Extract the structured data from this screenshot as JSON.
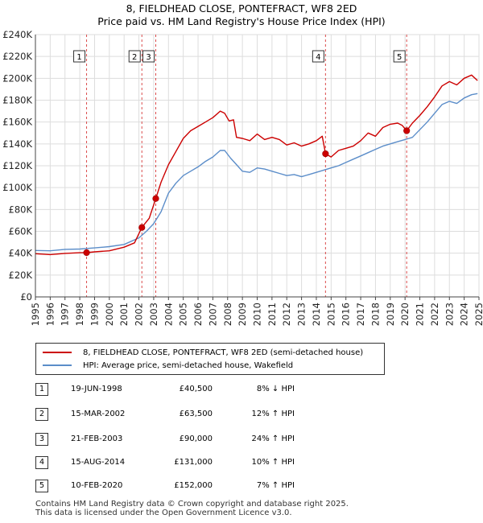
{
  "title_line1": "8, FIELDHEAD CLOSE, PONTEFRACT, WF8 2ED",
  "title_line2": "Price paid vs. HM Land Registry's House Price Index (HPI)",
  "colors": {
    "price_paid": "#cc0000",
    "hpi": "#5b8dc9",
    "grid": "#dddddd",
    "marker_line": "#cc0000"
  },
  "chart_data": {
    "type": "line",
    "ylim": [
      0,
      240000
    ],
    "xlim": [
      1995,
      2025
    ],
    "y_ticks": [
      0,
      20000,
      40000,
      60000,
      80000,
      100000,
      120000,
      140000,
      160000,
      180000,
      200000,
      220000,
      240000
    ],
    "y_tick_labels": [
      "£0",
      "£20K",
      "£40K",
      "£60K",
      "£80K",
      "£100K",
      "£120K",
      "£140K",
      "£160K",
      "£180K",
      "£200K",
      "£220K",
      "£240K"
    ],
    "x_ticks": [
      1995,
      1996,
      1997,
      1998,
      1999,
      2000,
      2001,
      2002,
      2003,
      2004,
      2005,
      2006,
      2007,
      2008,
      2009,
      2010,
      2011,
      2012,
      2013,
      2014,
      2015,
      2016,
      2017,
      2018,
      2019,
      2020,
      2021,
      2022,
      2023,
      2024,
      2025
    ],
    "grid": true,
    "series": [
      {
        "name": "8, FIELDHEAD CLOSE, PONTEFRACT, WF8 2ED (semi-detached house)",
        "color": "#cc0000",
        "points": [
          [
            1995.0,
            39500
          ],
          [
            1996.0,
            38700
          ],
          [
            1997.0,
            39800
          ],
          [
            1998.0,
            40400
          ],
          [
            1998.46,
            40500
          ],
          [
            1999.0,
            41200
          ],
          [
            2000.0,
            42200
          ],
          [
            2001.0,
            45500
          ],
          [
            2001.7,
            49500
          ],
          [
            2002.2,
            63500
          ],
          [
            2002.7,
            72000
          ],
          [
            2003.14,
            90000
          ],
          [
            2003.5,
            105000
          ],
          [
            2004.0,
            121000
          ],
          [
            2004.5,
            133000
          ],
          [
            2005.0,
            145000
          ],
          [
            2005.5,
            152000
          ],
          [
            2006.0,
            156000
          ],
          [
            2006.5,
            160000
          ],
          [
            2007.0,
            164000
          ],
          [
            2007.5,
            170000
          ],
          [
            2007.8,
            168000
          ],
          [
            2008.1,
            161000
          ],
          [
            2008.4,
            162000
          ],
          [
            2008.6,
            146000
          ],
          [
            2009.0,
            145000
          ],
          [
            2009.5,
            143000
          ],
          [
            2010.0,
            149000
          ],
          [
            2010.5,
            144000
          ],
          [
            2011.0,
            146000
          ],
          [
            2011.5,
            144000
          ],
          [
            2012.0,
            139000
          ],
          [
            2012.5,
            141000
          ],
          [
            2013.0,
            138000
          ],
          [
            2013.5,
            140000
          ],
          [
            2014.0,
            143000
          ],
          [
            2014.4,
            147000
          ],
          [
            2014.62,
            131000
          ],
          [
            2015.0,
            128000
          ],
          [
            2015.5,
            134000
          ],
          [
            2016.0,
            136000
          ],
          [
            2016.5,
            138000
          ],
          [
            2017.0,
            143000
          ],
          [
            2017.5,
            150000
          ],
          [
            2018.0,
            147000
          ],
          [
            2018.5,
            155000
          ],
          [
            2019.0,
            158000
          ],
          [
            2019.5,
            159000
          ],
          [
            2019.8,
            157000
          ],
          [
            2020.11,
            152000
          ],
          [
            2020.5,
            159000
          ],
          [
            2021.0,
            166000
          ],
          [
            2021.5,
            174000
          ],
          [
            2022.0,
            183000
          ],
          [
            2022.5,
            193000
          ],
          [
            2023.0,
            197000
          ],
          [
            2023.5,
            194000
          ],
          [
            2024.0,
            200000
          ],
          [
            2024.5,
            203000
          ],
          [
            2024.9,
            198000
          ]
        ]
      },
      {
        "name": "HPI: Average price, semi-detached house, Wakefield",
        "color": "#5b8dc9",
        "points": [
          [
            1995.0,
            42500
          ],
          [
            1996.0,
            42200
          ],
          [
            1997.0,
            43500
          ],
          [
            1998.0,
            43800
          ],
          [
            1999.0,
            44800
          ],
          [
            2000.0,
            46000
          ],
          [
            2001.0,
            48000
          ],
          [
            2002.0,
            54000
          ],
          [
            2002.5,
            60000
          ],
          [
            2003.0,
            67000
          ],
          [
            2003.5,
            78000
          ],
          [
            2004.0,
            95000
          ],
          [
            2004.5,
            104000
          ],
          [
            2005.0,
            111000
          ],
          [
            2005.5,
            115000
          ],
          [
            2006.0,
            119000
          ],
          [
            2006.5,
            124000
          ],
          [
            2007.0,
            128000
          ],
          [
            2007.5,
            134000
          ],
          [
            2007.8,
            134000
          ],
          [
            2008.2,
            127000
          ],
          [
            2008.6,
            121000
          ],
          [
            2009.0,
            115000
          ],
          [
            2009.5,
            114000
          ],
          [
            2010.0,
            118000
          ],
          [
            2010.5,
            117000
          ],
          [
            2011.0,
            115000
          ],
          [
            2011.5,
            113000
          ],
          [
            2012.0,
            111000
          ],
          [
            2012.5,
            112000
          ],
          [
            2013.0,
            110000
          ],
          [
            2013.5,
            112000
          ],
          [
            2014.0,
            114000
          ],
          [
            2014.5,
            116000
          ],
          [
            2015.0,
            118000
          ],
          [
            2015.5,
            120000
          ],
          [
            2016.0,
            123000
          ],
          [
            2016.5,
            126000
          ],
          [
            2017.0,
            129000
          ],
          [
            2017.5,
            132000
          ],
          [
            2018.0,
            135000
          ],
          [
            2018.5,
            138000
          ],
          [
            2019.0,
            140000
          ],
          [
            2019.5,
            142000
          ],
          [
            2020.0,
            144000
          ],
          [
            2020.5,
            146000
          ],
          [
            2021.0,
            153000
          ],
          [
            2021.5,
            160000
          ],
          [
            2022.0,
            168000
          ],
          [
            2022.5,
            176000
          ],
          [
            2023.0,
            179000
          ],
          [
            2023.5,
            177000
          ],
          [
            2024.0,
            182000
          ],
          [
            2024.5,
            185000
          ],
          [
            2024.9,
            186000
          ]
        ]
      }
    ],
    "transactions": [
      {
        "id": "1",
        "x": 1998.46,
        "price": 40500
      },
      {
        "id": "2",
        "x": 2002.2,
        "price": 63500
      },
      {
        "id": "3",
        "x": 2003.14,
        "price": 90000
      },
      {
        "id": "4",
        "x": 2014.62,
        "price": 131000
      },
      {
        "id": "5",
        "x": 2020.11,
        "price": 152000
      }
    ]
  },
  "legend": {
    "price_paid": "8, FIELDHEAD CLOSE, PONTEFRACT, WF8 2ED (semi-detached house)",
    "hpi": "HPI: Average price, semi-detached house, Wakefield"
  },
  "transactions_table": [
    {
      "num": "1",
      "date": "19-JUN-1998",
      "price": "£40,500",
      "hpi": "8% ↓ HPI"
    },
    {
      "num": "2",
      "date": "15-MAR-2002",
      "price": "£63,500",
      "hpi": "12% ↑ HPI"
    },
    {
      "num": "3",
      "date": "21-FEB-2003",
      "price": "£90,000",
      "hpi": "24% ↑ HPI"
    },
    {
      "num": "4",
      "date": "15-AUG-2014",
      "price": "£131,000",
      "hpi": "10% ↑ HPI"
    },
    {
      "num": "5",
      "date": "10-FEB-2020",
      "price": "£152,000",
      "hpi": "7% ↑ HPI"
    }
  ],
  "footer": {
    "line1": "Contains HM Land Registry data © Crown copyright and database right 2025.",
    "line2": "This data is licensed under the Open Government Licence v3.0."
  }
}
